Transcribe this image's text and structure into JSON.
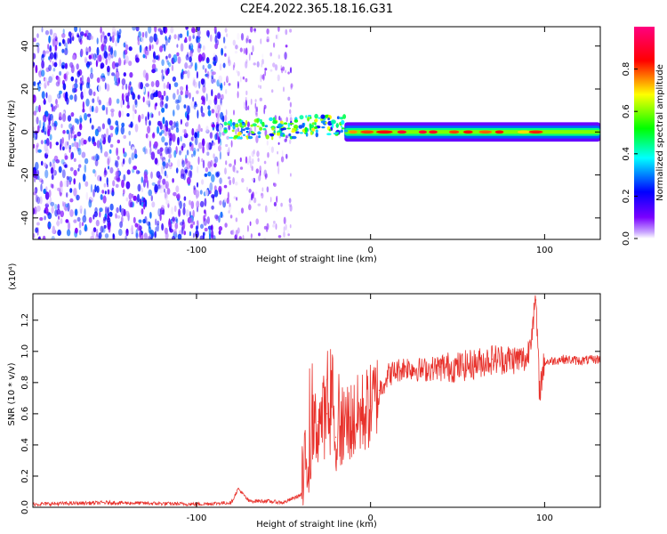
{
  "title": "C2E4.2022.365.18.16.G31",
  "chart_data": [
    {
      "type": "heatmap",
      "xlabel": "Height of straight line (km)",
      "ylabel": "Frequency (Hz)",
      "xlim": [
        -194,
        132
      ],
      "ylim": [
        -50,
        49
      ],
      "x_ticks": [
        -100,
        0,
        100
      ],
      "y_ticks": [
        -40,
        -20,
        0,
        20,
        40
      ],
      "colorbar": {
        "label": "Normalized spectral amplitude",
        "range": [
          0.0,
          1.0
        ],
        "ticks": [
          "0.0",
          "0.2",
          "0.4",
          "0.6",
          "0.8"
        ],
        "colors": [
          "#ffffff",
          "#7a00ff",
          "#0000ff",
          "#00ffff",
          "#00ff00",
          "#ffff00",
          "#ff0000",
          "#ff007f"
        ]
      },
      "regions": [
        {
          "x": [
            -194,
            -84
          ],
          "freq": [
            -50,
            49
          ],
          "amplitude": 0.15,
          "pattern": "scattered noise"
        },
        {
          "x": [
            -84,
            -45
          ],
          "freq": [
            -50,
            49
          ],
          "amplitude": 0.08,
          "pattern": "sparse streaks"
        },
        {
          "x": [
            -84,
            -40
          ],
          "freq": [
            -4,
            7
          ],
          "amplitude": 0.5
        },
        {
          "x": [
            -40,
            -15
          ],
          "freq": [
            -4,
            8
          ],
          "amplitude": 0.6
        },
        {
          "x": [
            -15,
            132
          ],
          "freq": [
            -4,
            4
          ],
          "amplitude": 0.75,
          "center_freq": 0
        }
      ]
    },
    {
      "type": "line",
      "xlabel": "Height of straight line (km)",
      "ylabel": "SNR (10 * v/v)",
      "y_multiplier": "(x10⁴)",
      "xlim": [
        -194,
        132
      ],
      "ylim": [
        0,
        1.37
      ],
      "x_ticks": [
        -100,
        0,
        100
      ],
      "y_ticks": [
        0.0,
        0.2,
        0.4,
        0.6,
        0.8,
        1.0,
        1.2
      ],
      "color": "#e8322c",
      "x": [
        -194,
        -150,
        -100,
        -80,
        -76,
        -70,
        -60,
        -50,
        -40,
        -35,
        -30,
        -25,
        -20,
        -15,
        -10,
        -5,
        0,
        5,
        10,
        20,
        30,
        40,
        50,
        60,
        70,
        80,
        90,
        95,
        97,
        100,
        110,
        120,
        132
      ],
      "y": [
        0.02,
        0.03,
        0.02,
        0.03,
        0.12,
        0.04,
        0.04,
        0.03,
        0.08,
        0.4,
        0.55,
        0.6,
        0.45,
        0.55,
        0.55,
        0.6,
        0.65,
        0.75,
        0.85,
        0.9,
        0.88,
        0.9,
        0.9,
        0.92,
        0.95,
        0.95,
        0.95,
        1.33,
        0.75,
        0.93,
        0.95,
        0.94,
        0.95
      ]
    }
  ]
}
